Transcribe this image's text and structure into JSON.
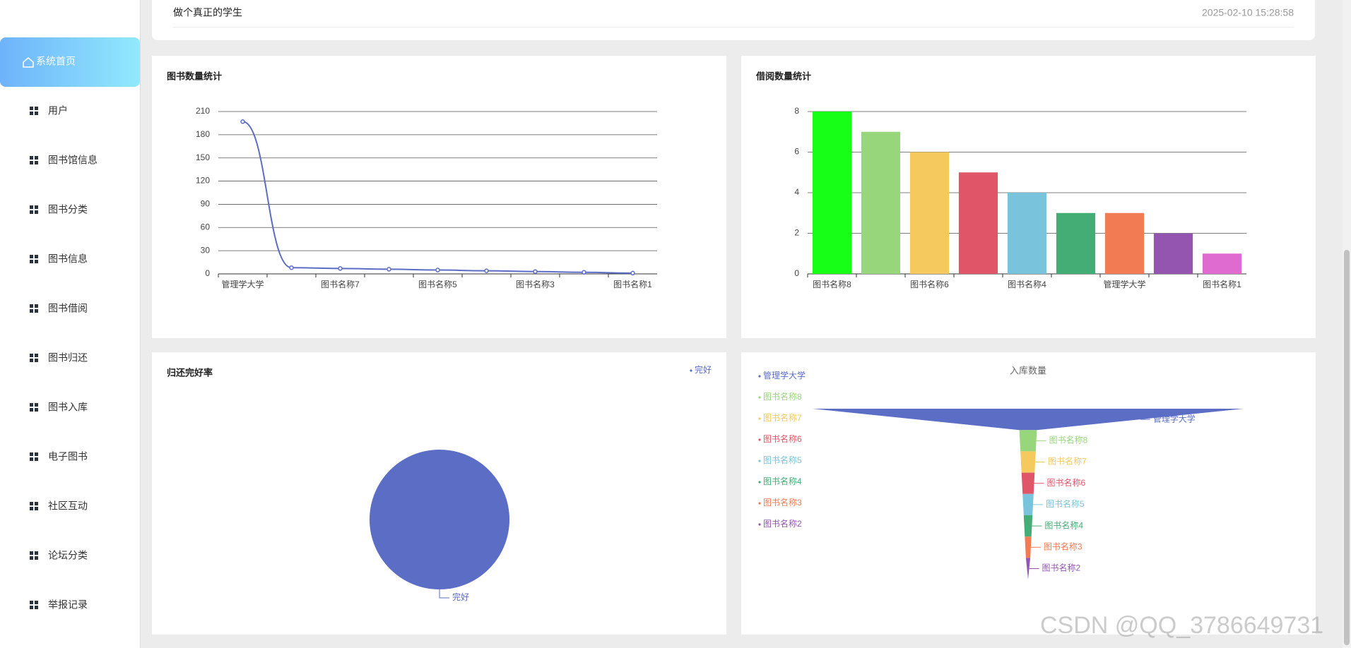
{
  "sidebar": {
    "items": [
      "系统首页",
      "用户",
      "图书馆信息",
      "图书分类",
      "图书信息",
      "图书借阅",
      "图书归还",
      "图书入库",
      "电子图书",
      "社区互动",
      "论坛分类",
      "举报记录"
    ]
  },
  "header": {
    "motto": "做个真正的学生",
    "datetime": "2025-02-10 15:28:58"
  },
  "chart_data": [
    {
      "type": "line",
      "title": "图书数量统计",
      "categories": [
        "管理学大学",
        null,
        "图书名称7",
        null,
        "图书名称5",
        null,
        "图书名称3",
        null,
        "图书名称1"
      ],
      "values": [
        197,
        8,
        7,
        6,
        5,
        4,
        3,
        2,
        1
      ],
      "color": "#5b6dc5",
      "ylim": [
        0,
        210
      ],
      "yticks": [
        0,
        30,
        60,
        90,
        120,
        150,
        180,
        210
      ],
      "grid": true,
      "smooth": true
    },
    {
      "type": "bar",
      "title": "借阅数量统计",
      "categories": [
        "图书名称8",
        null,
        "图书名称6",
        null,
        "图书名称4",
        null,
        "管理学大学",
        null,
        "图书名称1"
      ],
      "values": [
        8,
        7,
        6,
        5,
        4,
        3,
        3,
        2,
        1
      ],
      "colors": [
        "#17ff17",
        "#97d67a",
        "#f5c95e",
        "#e05568",
        "#79c4dc",
        "#43ad75",
        "#f27b54",
        "#9355b0",
        "#e06bd0"
      ],
      "ylim": [
        0,
        8
      ],
      "yticks": [
        0,
        2,
        4,
        6,
        8
      ],
      "grid": true
    },
    {
      "type": "pie",
      "title": "归还完好率",
      "categories": [
        "完好"
      ],
      "values": [
        100
      ],
      "colors": [
        "#5b6dc5"
      ]
    },
    {
      "type": "funnel",
      "title": "入库数量",
      "categories": [
        "管理学大学",
        "图书名称8",
        "图书名称7",
        "图书名称6",
        "图书名称5",
        "图书名称4",
        "图书名称3",
        "图书名称2"
      ],
      "values": [
        197,
        8,
        7,
        6,
        5,
        4,
        3,
        2
      ],
      "colors": [
        "#5b6dc5",
        "#97d67a",
        "#f5c95e",
        "#e05568",
        "#79c4dc",
        "#43ad75",
        "#f27b54",
        "#9355b0"
      ]
    }
  ],
  "watermark": "CSDN @QQ_3786649731"
}
